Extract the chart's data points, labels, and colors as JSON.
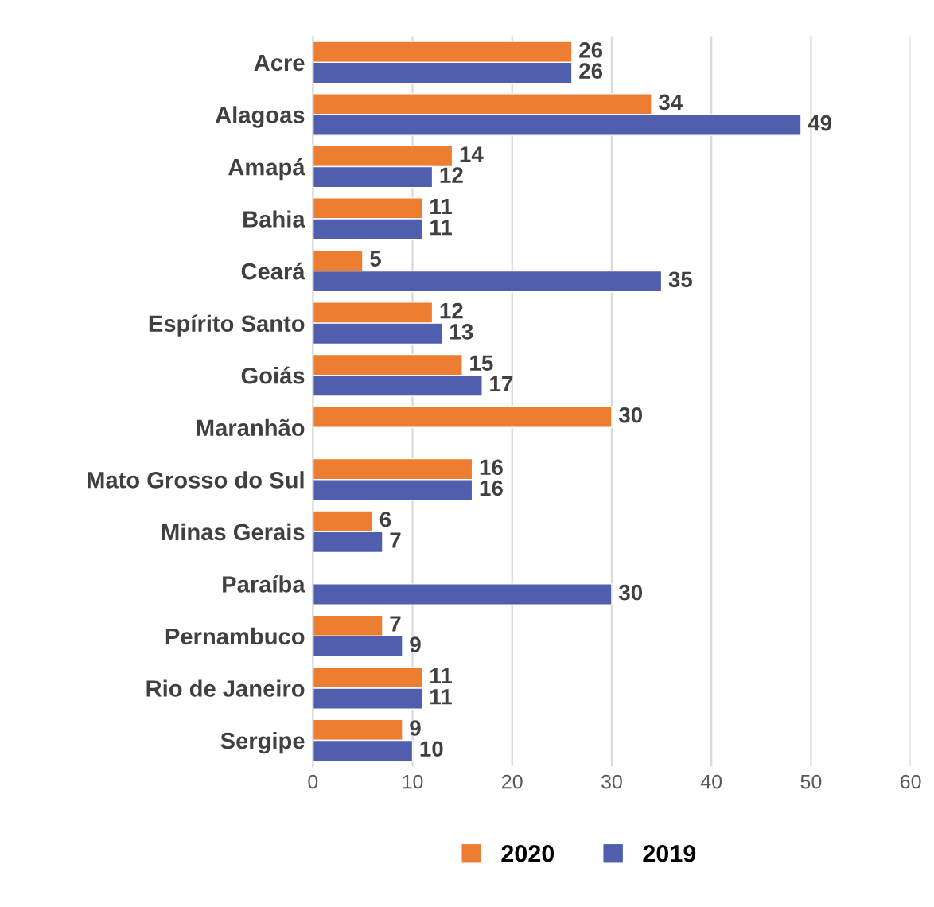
{
  "chart_data": {
    "type": "bar",
    "orientation": "horizontal",
    "categories": [
      "Acre",
      "Alagoas",
      "Amapá",
      "Bahia",
      "Ceará",
      "Espírito Santo",
      "Goiás",
      "Maranhão",
      "Mato Grosso do Sul",
      "Minas Gerais",
      "Paraíba",
      "Pernambuco",
      "Rio de Janeiro",
      "Sergipe"
    ],
    "series": [
      {
        "name": "2020",
        "color": "#ed7d31",
        "values": [
          26,
          34,
          14,
          11,
          5,
          12,
          15,
          30,
          16,
          6,
          null,
          7,
          11,
          9
        ]
      },
      {
        "name": "2019",
        "color": "#4f5fae",
        "values": [
          26,
          49,
          12,
          11,
          35,
          13,
          17,
          null,
          16,
          7,
          30,
          9,
          11,
          10
        ]
      }
    ],
    "xlim": [
      0,
      60
    ],
    "xticks": [
      0,
      10,
      20,
      30,
      40,
      50,
      60
    ],
    "grid": "x",
    "legend": "bottom",
    "data_labels": true
  }
}
